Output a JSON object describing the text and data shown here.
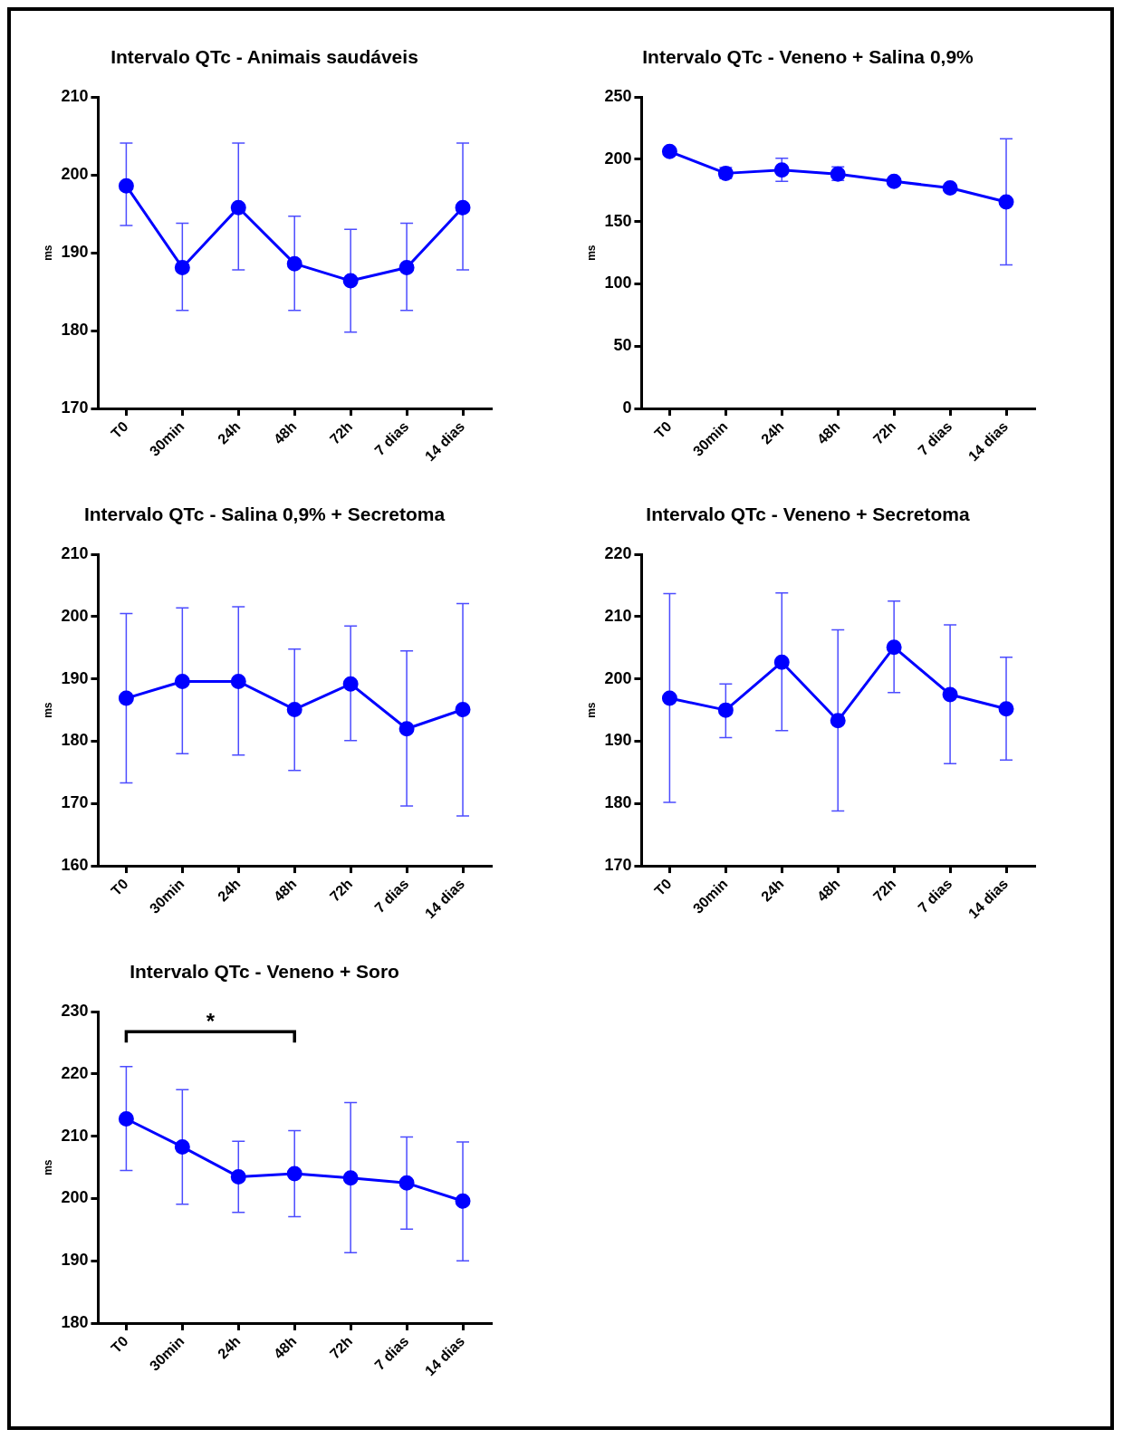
{
  "chart_data": [
    {
      "type": "line",
      "title": "Intervalo QTc - Animais saudáveis",
      "ylabel": "ms",
      "categories": [
        "T0",
        "30min",
        "24h",
        "48h",
        "72h",
        "7 dias",
        "14 dias"
      ],
      "ylim": [
        170,
        210
      ],
      "yticks": [
        170,
        180,
        190,
        200,
        210
      ],
      "grid": false,
      "legend": false,
      "marker": "circle",
      "series": [
        {
          "color": "#0000ff",
          "values": [
            198.6,
            188.1,
            195.8,
            188.6,
            186.4,
            188.1,
            195.8
          ],
          "errors": [
            [
              193.5,
              204.1
            ],
            [
              182.6,
              193.8
            ],
            [
              187.8,
              204.1
            ],
            [
              182.6,
              194.7
            ],
            [
              179.8,
              193.0
            ],
            [
              182.6,
              193.8
            ],
            [
              187.8,
              204.1
            ]
          ]
        }
      ]
    },
    {
      "type": "line",
      "title": "Intervalo QTc - Veneno + Salina 0,9%",
      "ylabel": "ms",
      "categories": [
        "T0",
        "30min",
        "24h",
        "48h",
        "72h",
        "7 dias",
        "14 dias"
      ],
      "ylim": [
        0,
        250
      ],
      "yticks": [
        0,
        50,
        100,
        150,
        200,
        250
      ],
      "grid": false,
      "legend": false,
      "marker": "circle",
      "series": [
        {
          "color": "#0000ff",
          "values": [
            206.3,
            188.8,
            191.4,
            188.2,
            182.3,
            177.1,
            165.8
          ],
          "errors": [
            null,
            [
              184.8,
              193.5
            ],
            [
              182.3,
              200.8
            ],
            [
              183,
              194
            ],
            null,
            null,
            [
              115.2,
              216.6
            ]
          ]
        }
      ]
    },
    {
      "type": "line",
      "title": "Intervalo QTc - Salina 0,9% + Secretoma",
      "ylabel": "ms",
      "categories": [
        "T0",
        "30min",
        "24h",
        "48h",
        "72h",
        "7 dias",
        "14 dias"
      ],
      "ylim": [
        160,
        210
      ],
      "yticks": [
        160,
        170,
        180,
        190,
        200,
        210
      ],
      "grid": false,
      "legend": false,
      "marker": "circle",
      "series": [
        {
          "color": "#0000ff",
          "values": [
            186.9,
            189.6,
            189.6,
            185.1,
            189.2,
            182.0,
            185.1
          ],
          "errors": [
            [
              173.3,
              200.5
            ],
            [
              178.0,
              201.4
            ],
            [
              177.8,
              201.6
            ],
            [
              175.3,
              194.8
            ],
            [
              180.1,
              198.5
            ],
            [
              169.6,
              194.5
            ],
            [
              168.0,
              202.1
            ]
          ]
        }
      ]
    },
    {
      "type": "line",
      "title": "Intervalo QTc - Veneno + Secretoma",
      "ylabel": "ms",
      "categories": [
        "T0",
        "30min",
        "24h",
        "48h",
        "72h",
        "7 dias",
        "14 dias"
      ],
      "ylim": [
        170,
        220
      ],
      "yticks": [
        170,
        180,
        190,
        200,
        210,
        220
      ],
      "grid": false,
      "legend": false,
      "marker": "circle",
      "series": [
        {
          "color": "#0000ff",
          "values": [
            196.9,
            195.0,
            202.7,
            193.3,
            205.1,
            197.5,
            195.2
          ],
          "errors": [
            [
              180.2,
              213.7
            ],
            [
              190.6,
              199.2
            ],
            [
              191.7,
              213.8
            ],
            [
              178.8,
              207.9
            ],
            [
              197.8,
              212.5
            ],
            [
              186.4,
              208.7
            ],
            [
              187.0,
              203.5
            ]
          ]
        }
      ]
    },
    {
      "type": "line",
      "title": "Intervalo QTc - Veneno + Soro",
      "ylabel": "ms",
      "categories": [
        "T0",
        "30min",
        "24h",
        "48h",
        "72h",
        "7 dias",
        "14 dias"
      ],
      "ylim": [
        180,
        230
      ],
      "yticks": [
        180,
        190,
        200,
        210,
        220,
        230
      ],
      "grid": false,
      "legend": false,
      "marker": "circle",
      "annotations": [
        "*"
      ],
      "series": [
        {
          "color": "#0000ff",
          "values": [
            212.8,
            208.3,
            203.5,
            204.0,
            203.3,
            202.5,
            199.6
          ],
          "errors": [
            [
              204.5,
              221.2
            ],
            [
              199.1,
              217.5
            ],
            [
              197.8,
              209.2
            ],
            [
              197.1,
              210.9
            ],
            [
              191.3,
              215.4
            ],
            [
              195.1,
              209.9
            ],
            [
              190.0,
              209.1
            ]
          ]
        }
      ]
    }
  ]
}
